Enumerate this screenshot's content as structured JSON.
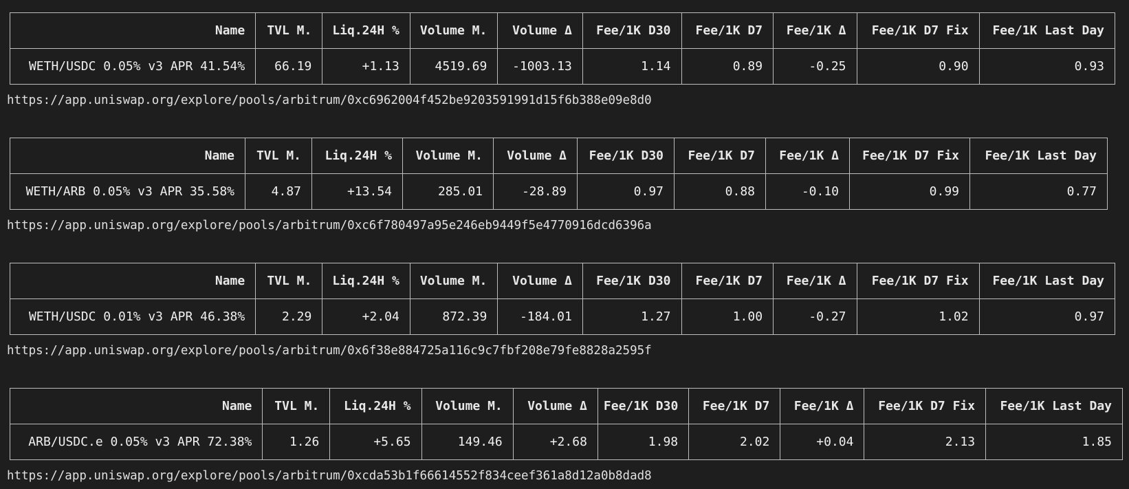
{
  "columns": [
    "Name",
    "TVL M.",
    "Liq.24H %",
    "Volume M.",
    "Volume Δ",
    "Fee/1K D30",
    "Fee/1K D7",
    "Fee/1K Δ",
    "Fee/1K D7 Fix",
    "Fee/1K Last Day"
  ],
  "pools": [
    {
      "row": [
        "WETH/USDC 0.05% v3 APR 41.54%",
        "66.19",
        "+1.13",
        "4519.69",
        "-1003.13",
        "1.14",
        "0.89",
        "-0.25",
        "0.90",
        "0.93"
      ],
      "url": "https://app.uniswap.org/explore/pools/arbitrum/0xc6962004f452be9203591991d15f6b388e09e8d0"
    },
    {
      "row": [
        "WETH/ARB 0.05% v3 APR 35.58%",
        "4.87",
        "+13.54",
        "285.01",
        "-28.89",
        "0.97",
        "0.88",
        "-0.10",
        "0.99",
        "0.77"
      ],
      "url": "https://app.uniswap.org/explore/pools/arbitrum/0xc6f780497a95e246eb9449f5e4770916dcd6396a"
    },
    {
      "row": [
        "WETH/USDC 0.01% v3 APR 46.38%",
        "2.29",
        "+2.04",
        "872.39",
        "-184.01",
        "1.27",
        "1.00",
        "-0.27",
        "1.02",
        "0.97"
      ],
      "url": "https://app.uniswap.org/explore/pools/arbitrum/0x6f38e884725a116c9c7fbf208e79fe8828a2595f"
    },
    {
      "row": [
        "ARB/USDC.e 0.05% v3 APR 72.38%",
        "1.26",
        "+5.65",
        "149.46",
        "+2.68",
        "1.98",
        "2.02",
        "+0.04",
        "2.13",
        "1.85"
      ],
      "url": "https://app.uniswap.org/explore/pools/arbitrum/0xcda53b1f66614552f834ceef361a8d12a0b8dad8"
    }
  ]
}
